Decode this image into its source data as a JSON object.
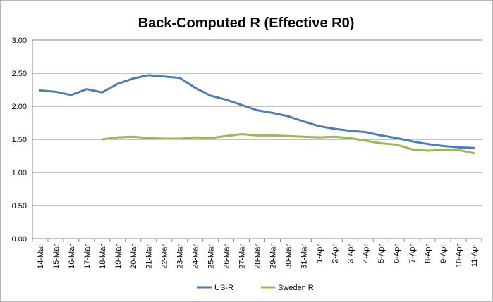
{
  "chart_data": {
    "type": "line",
    "title": "Back-Computed R (Effective R0)",
    "xlabel": "",
    "ylabel": "",
    "ylim": [
      0,
      3
    ],
    "yticks": [
      "0.00",
      "0.50",
      "1.00",
      "1.50",
      "2.00",
      "2.50",
      "3.00"
    ],
    "categories": [
      "14-Mar",
      "15-Mar",
      "16-Mar",
      "17-Mar",
      "18-Mar",
      "19-Mar",
      "20-Mar",
      "21-Mar",
      "22-Mar",
      "23-Mar",
      "24-Mar",
      "25-Mar",
      "26-Mar",
      "27-Mar",
      "28-Mar",
      "29-Mar",
      "30-Mar",
      "31-Mar",
      "1-Apr",
      "2-Apr",
      "3-Apr",
      "4-Apr",
      "5-Apr",
      "6-Apr",
      "7-Apr",
      "8-Apr",
      "9-Apr",
      "10-Apr",
      "11-Apr"
    ],
    "grid": true,
    "legend_position": "bottom",
    "series": [
      {
        "name": "US-R",
        "color": "#4a7ebb",
        "values": [
          2.24,
          2.22,
          2.17,
          2.26,
          2.21,
          2.34,
          2.42,
          2.47,
          2.45,
          2.43,
          2.28,
          2.16,
          2.1,
          2.02,
          1.94,
          1.9,
          1.85,
          1.77,
          1.7,
          1.66,
          1.63,
          1.61,
          1.56,
          1.52,
          1.47,
          1.43,
          1.4,
          1.38,
          1.37
        ]
      },
      {
        "name": "Sweden R",
        "color": "#98b954",
        "values": [
          null,
          null,
          null,
          null,
          1.5,
          1.53,
          1.54,
          1.52,
          1.51,
          1.51,
          1.53,
          1.52,
          1.55,
          1.58,
          1.56,
          1.56,
          1.55,
          1.54,
          1.53,
          1.54,
          1.52,
          1.48,
          1.44,
          1.42,
          1.35,
          1.33,
          1.34,
          1.34,
          1.29
        ]
      }
    ]
  }
}
